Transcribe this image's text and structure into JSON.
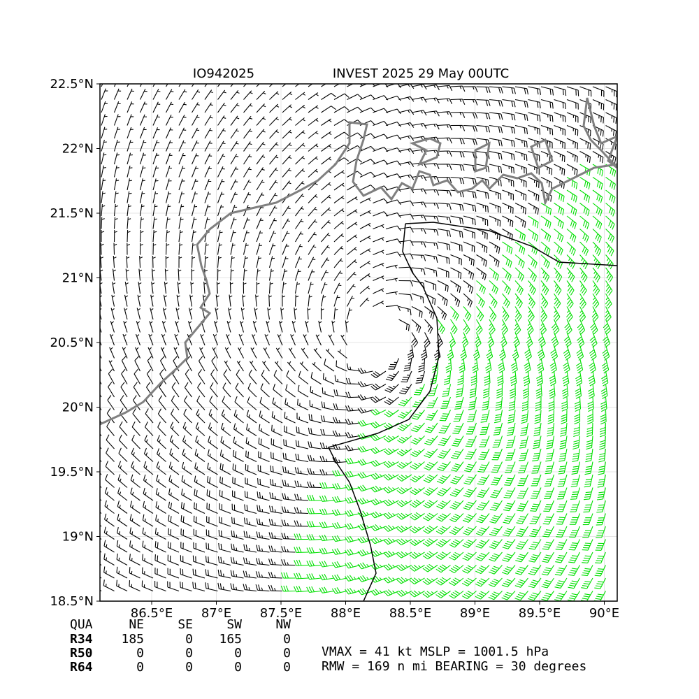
{
  "map": {
    "title_left": "IO942025",
    "title_right": "INVEST 2025 29 May 00UTC",
    "xlim": [
      86.1,
      90.1
    ],
    "ylim": [
      18.5,
      22.5
    ],
    "xticks": [
      {
        "value": 86.5,
        "label": "86.5°E"
      },
      {
        "value": 87,
        "label": "87°E"
      },
      {
        "value": 87.5,
        "label": "87.5°E"
      },
      {
        "value": 88,
        "label": "88°E"
      },
      {
        "value": 88.5,
        "label": "88.5°E"
      },
      {
        "value": 89,
        "label": "89°E"
      },
      {
        "value": 89.5,
        "label": "89.5°E"
      },
      {
        "value": 90,
        "label": "90°E"
      }
    ],
    "yticks": [
      {
        "value": 18.5,
        "label": "18.5°N"
      },
      {
        "value": 19,
        "label": "19°N"
      },
      {
        "value": 19.5,
        "label": "19.5°N"
      },
      {
        "value": 20,
        "label": "20°N"
      },
      {
        "value": 20.5,
        "label": "20.5°N"
      },
      {
        "value": 21,
        "label": "21°N"
      },
      {
        "value": 21.5,
        "label": "21.5°N"
      },
      {
        "value": 22,
        "label": "22°N"
      },
      {
        "value": 22.5,
        "label": "22.5°N"
      }
    ],
    "table": {
      "header": [
        "QUA",
        "NE",
        "SE",
        "SW",
        "NW"
      ],
      "rows": [
        [
          "R34",
          185,
          0,
          165,
          0
        ],
        [
          "R50",
          0,
          0,
          0,
          0
        ],
        [
          "R64",
          0,
          0,
          0,
          0
        ]
      ]
    },
    "vmax_line": "VMAX =  41 kt MSLP = 1001.5 hPa",
    "rmw_line": "RMW = 169 n mi BEARING =  30 degrees"
  }
}
